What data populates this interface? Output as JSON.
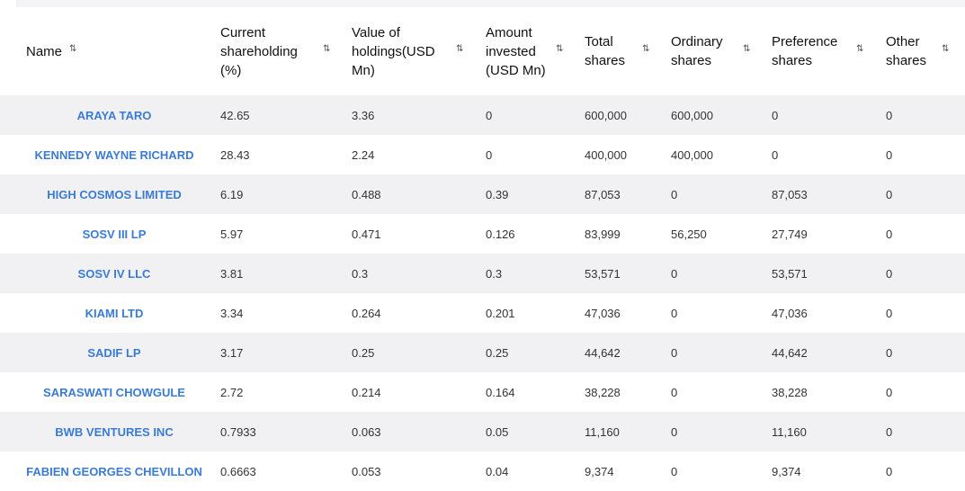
{
  "columns": [
    {
      "label": "Name"
    },
    {
      "label": "Current shareholding (%)"
    },
    {
      "label": "Value of holdings(USD Mn)"
    },
    {
      "label": "Amount invested (USD Mn)"
    },
    {
      "label": "Total shares"
    },
    {
      "label": "Ordinary shares"
    },
    {
      "label": "Preference shares"
    },
    {
      "label": "Other shares"
    }
  ],
  "rows": [
    {
      "name": "ARAYA TARO",
      "current": "42.65",
      "value": "3.36",
      "amount": "0",
      "total": "600,000",
      "ordinary": "600,000",
      "preference": "0",
      "other": "0"
    },
    {
      "name": "KENNEDY WAYNE RICHARD",
      "current": "28.43",
      "value": "2.24",
      "amount": "0",
      "total": "400,000",
      "ordinary": "400,000",
      "preference": "0",
      "other": "0"
    },
    {
      "name": "HIGH COSMOS LIMITED",
      "current": "6.19",
      "value": "0.488",
      "amount": "0.39",
      "total": "87,053",
      "ordinary": "0",
      "preference": "87,053",
      "other": "0"
    },
    {
      "name": "SOSV III LP",
      "current": "5.97",
      "value": "0.471",
      "amount": "0.126",
      "total": "83,999",
      "ordinary": "56,250",
      "preference": "27,749",
      "other": "0"
    },
    {
      "name": "SOSV IV LLC",
      "current": "3.81",
      "value": "0.3",
      "amount": "0.3",
      "total": "53,571",
      "ordinary": "0",
      "preference": "53,571",
      "other": "0"
    },
    {
      "name": "KIAMI LTD",
      "current": "3.34",
      "value": "0.264",
      "amount": "0.201",
      "total": "47,036",
      "ordinary": "0",
      "preference": "47,036",
      "other": "0"
    },
    {
      "name": "SADIF LP",
      "current": "3.17",
      "value": "0.25",
      "amount": "0.25",
      "total": "44,642",
      "ordinary": "0",
      "preference": "44,642",
      "other": "0"
    },
    {
      "name": "SARASWATI CHOWGULE",
      "current": "2.72",
      "value": "0.214",
      "amount": "0.164",
      "total": "38,228",
      "ordinary": "0",
      "preference": "38,228",
      "other": "0"
    },
    {
      "name": "BWB VENTURES INC",
      "current": "0.7933",
      "value": "0.063",
      "amount": "0.05",
      "total": "11,160",
      "ordinary": "0",
      "preference": "11,160",
      "other": "0"
    },
    {
      "name": "FABIEN GEORGES CHEVILLON",
      "current": "0.6663",
      "value": "0.053",
      "amount": "0.04",
      "total": "9,374",
      "ordinary": "0",
      "preference": "9,374",
      "other": "0"
    }
  ],
  "icons": {
    "sort": "sort-arrows-icon"
  },
  "colors": {
    "link": "#3a7bd5",
    "row_shade": "#f1f1f3"
  }
}
